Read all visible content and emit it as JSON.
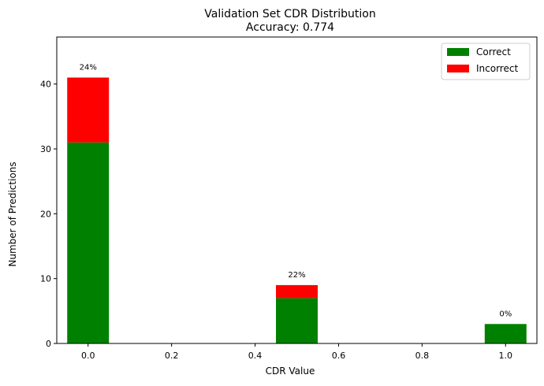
{
  "chart_data": {
    "type": "bar",
    "stacked": true,
    "title": "Validation Set CDR Distribution",
    "subtitle": "Accuracy: 0.774",
    "xlabel": "CDR Value",
    "ylabel": "Number of Predictions",
    "x": [
      0.0,
      0.5,
      1.0
    ],
    "bar_width": 0.1,
    "series": [
      {
        "name": "Correct",
        "color": "#008000",
        "values": [
          31,
          7,
          3
        ]
      },
      {
        "name": "Incorrect",
        "color": "#ff0000",
        "values": [
          10,
          2,
          0
        ]
      }
    ],
    "data_labels": [
      "24%",
      "22%",
      "0%"
    ],
    "xlim": [
      -0.075,
      1.075
    ],
    "ylim": [
      0,
      47.25
    ],
    "xticks": [
      0.0,
      0.2,
      0.4,
      0.6,
      0.8,
      1.0
    ],
    "xtick_labels": [
      "0.0",
      "0.2",
      "0.4",
      "0.6",
      "0.8",
      "1.0"
    ],
    "yticks": [
      0,
      10,
      20,
      30,
      40
    ],
    "ytick_labels": [
      "0",
      "10",
      "20",
      "30",
      "40"
    ],
    "grid": false,
    "legend_position": "top-right"
  }
}
